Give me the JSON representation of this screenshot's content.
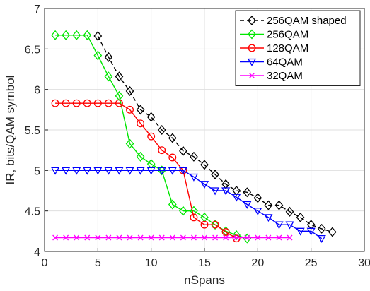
{
  "chart_data": {
    "type": "line",
    "title": "",
    "xlabel": "nSpans",
    "ylabel": "IR, bits/QAM symbol",
    "xlim": [
      0,
      30
    ],
    "ylim": [
      4,
      7
    ],
    "xticks": [
      0,
      5,
      10,
      15,
      20,
      25,
      30
    ],
    "yticks": [
      4,
      4.5,
      5,
      5.5,
      6,
      6.5,
      7
    ],
    "grid": true,
    "legend_position": "top-right",
    "series": [
      {
        "name": "256QAM shaped",
        "color": "#000000",
        "marker": "diamond",
        "line_style": "dashed",
        "x": [
          5,
          6,
          7,
          8,
          9,
          10,
          11,
          12,
          13,
          14,
          15,
          16,
          17,
          18,
          19,
          20,
          21,
          22,
          23,
          24,
          25,
          26,
          27
        ],
        "y": [
          6.66,
          6.4,
          6.16,
          5.98,
          5.75,
          5.66,
          5.5,
          5.4,
          5.24,
          5.17,
          5.07,
          4.95,
          4.83,
          4.75,
          4.73,
          4.66,
          4.57,
          4.57,
          4.49,
          4.42,
          4.33,
          4.28,
          4.24
        ]
      },
      {
        "name": "256QAM",
        "color": "#00e600",
        "marker": "diamond",
        "line_style": "solid",
        "x": [
          1,
          2,
          3,
          4,
          5,
          6,
          7,
          8,
          9,
          10,
          11,
          12,
          13,
          14,
          15,
          16,
          17,
          18,
          19
        ],
        "y": [
          6.67,
          6.67,
          6.67,
          6.67,
          6.42,
          6.16,
          5.92,
          5.33,
          5.17,
          5.08,
          5.0,
          4.58,
          4.5,
          4.5,
          4.42,
          4.33,
          4.25,
          4.2,
          4.16
        ]
      },
      {
        "name": "128QAM",
        "color": "#ff0000",
        "marker": "circle",
        "line_style": "solid",
        "x": [
          1,
          2,
          3,
          4,
          5,
          6,
          7,
          8,
          9,
          10,
          11,
          12,
          13,
          14,
          15,
          16,
          17,
          18
        ],
        "y": [
          5.83,
          5.83,
          5.83,
          5.83,
          5.83,
          5.83,
          5.83,
          5.75,
          5.58,
          5.42,
          5.25,
          5.16,
          5.0,
          4.42,
          4.33,
          4.33,
          4.24,
          4.16
        ]
      },
      {
        "name": "64QAM",
        "color": "#0000ff",
        "marker": "triangle-down",
        "line_style": "solid",
        "x": [
          1,
          2,
          3,
          4,
          5,
          6,
          7,
          8,
          9,
          10,
          11,
          12,
          13,
          14,
          15,
          16,
          17,
          18,
          19,
          20,
          21,
          22,
          23,
          24,
          25,
          26
        ],
        "y": [
          5.0,
          5.0,
          5.0,
          5.0,
          5.0,
          5.0,
          5.0,
          5.0,
          5.0,
          5.0,
          5.0,
          5.0,
          5.0,
          4.92,
          4.83,
          4.75,
          4.75,
          4.67,
          4.58,
          4.5,
          4.42,
          4.33,
          4.33,
          4.25,
          4.25,
          4.16
        ]
      },
      {
        "name": "32QAM",
        "color": "#ff00ff",
        "marker": "x",
        "line_style": "solid",
        "x": [
          1,
          2,
          3,
          4,
          5,
          6,
          7,
          8,
          9,
          10,
          11,
          12,
          13,
          14,
          15,
          16,
          17,
          18,
          19,
          20,
          21,
          22,
          23
        ],
        "y": [
          4.17,
          4.17,
          4.17,
          4.17,
          4.17,
          4.17,
          4.17,
          4.17,
          4.17,
          4.17,
          4.17,
          4.17,
          4.17,
          4.17,
          4.17,
          4.17,
          4.17,
          4.17,
          4.17,
          4.17,
          4.17,
          4.17,
          4.17
        ]
      }
    ]
  }
}
